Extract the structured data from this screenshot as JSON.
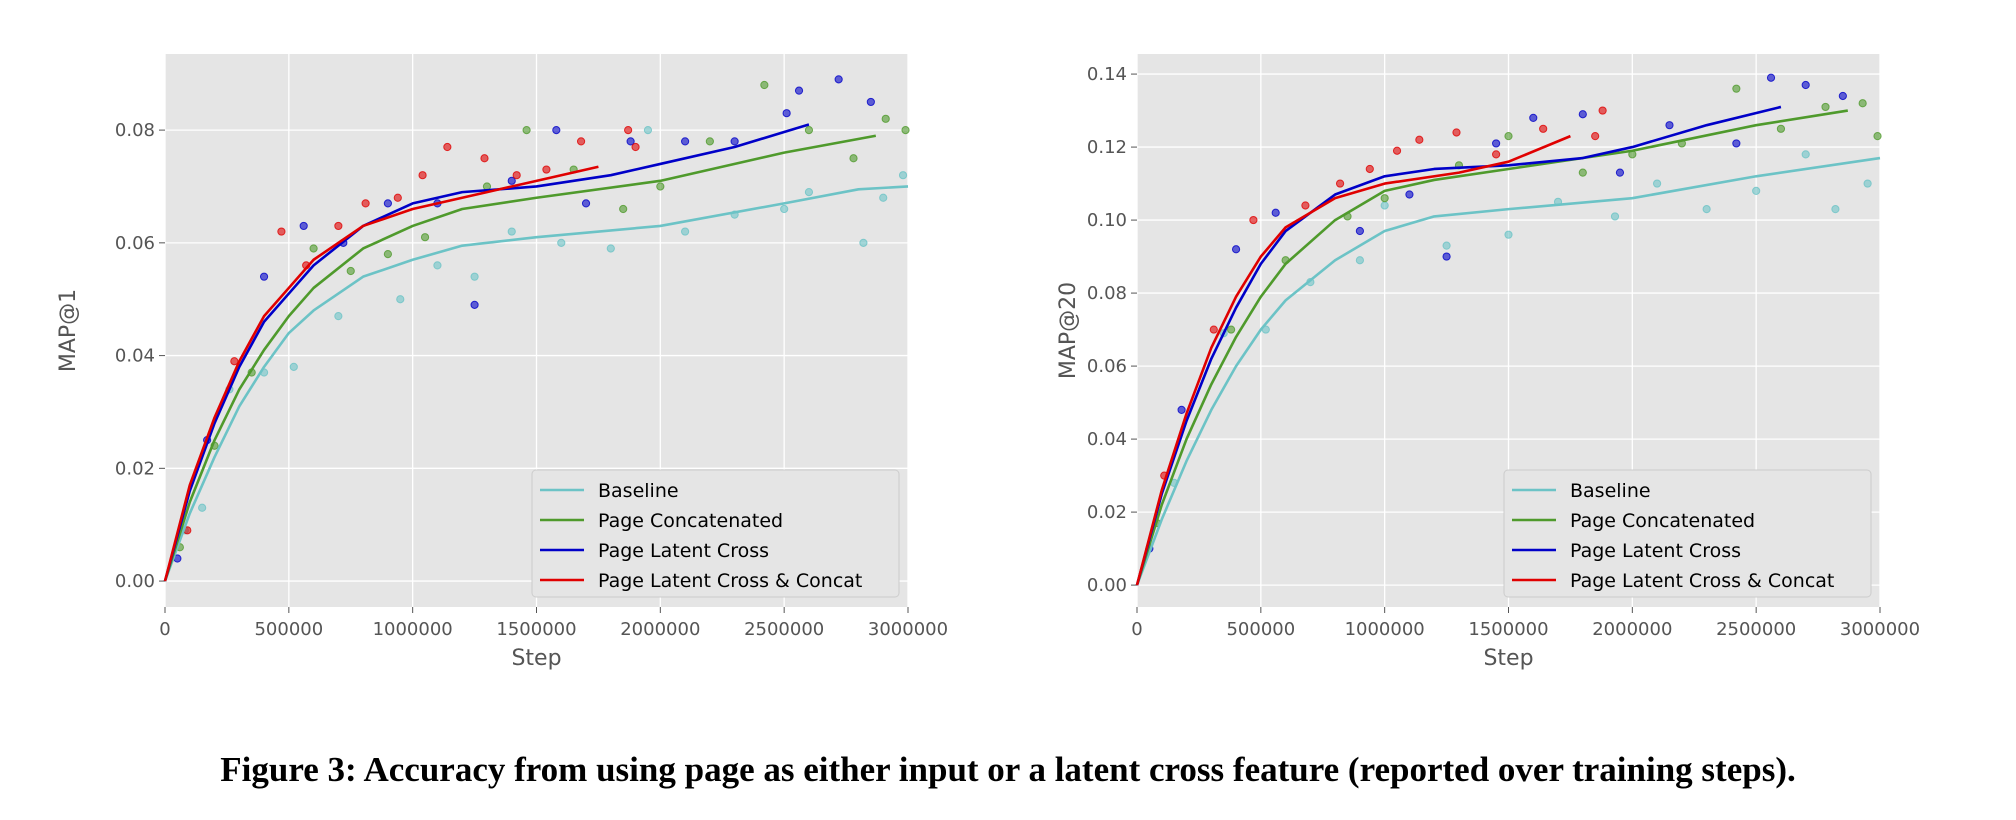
{
  "caption": "Figure 3: Accuracy from using page as either input or a latent cross feature (reported over training steps).",
  "colors": {
    "Baseline": "#6cc3c6",
    "Page Concatenated": "#4f9a2c",
    "Page Latent Cross": "#0000c8",
    "Page Latent Cross & Concat": "#e00000",
    "background": "#e5e5e5",
    "grid": "#ffffff"
  },
  "chart_data": [
    {
      "type": "scatter",
      "xlabel": "Step",
      "ylabel": "MAP@1",
      "xlim": [
        0,
        3000000
      ],
      "ylim": [
        -0.0046,
        0.0935
      ],
      "xticks": [
        "0",
        "500000",
        "1000000",
        "1500000",
        "2000000",
        "2500000",
        "3000000"
      ],
      "yticks": [
        "0.00",
        "0.02",
        "0.04",
        "0.06",
        "0.08"
      ],
      "grid": true,
      "legend": "bottom-right",
      "series": [
        {
          "name": "Baseline",
          "line": [
            [
              0,
              0
            ],
            [
              100000,
              0.012
            ],
            [
              200000,
              0.022
            ],
            [
              300000,
              0.031
            ],
            [
              400000,
              0.038
            ],
            [
              500000,
              0.044
            ],
            [
              600000,
              0.048
            ],
            [
              800000,
              0.054
            ],
            [
              1000000,
              0.057
            ],
            [
              1200000,
              0.0595
            ],
            [
              1500000,
              0.061
            ],
            [
              2000000,
              0.063
            ],
            [
              2500000,
              0.067
            ],
            [
              2800000,
              0.0695
            ],
            [
              3000000,
              0.07
            ]
          ],
          "points": [
            [
              80000,
              0.009
            ],
            [
              150000,
              0.013
            ],
            [
              260000,
              0.034
            ],
            [
              400000,
              0.037
            ],
            [
              520000,
              0.038
            ],
            [
              700000,
              0.047
            ],
            [
              950000,
              0.05
            ],
            [
              1100000,
              0.056
            ],
            [
              1250000,
              0.054
            ],
            [
              1400000,
              0.062
            ],
            [
              1600000,
              0.06
            ],
            [
              1800000,
              0.059
            ],
            [
              1950000,
              0.08
            ],
            [
              2100000,
              0.062
            ],
            [
              2300000,
              0.065
            ],
            [
              2500000,
              0.066
            ],
            [
              2600000,
              0.069
            ],
            [
              2820000,
              0.06
            ],
            [
              2900000,
              0.068
            ],
            [
              2980000,
              0.072
            ]
          ]
        },
        {
          "name": "Page Concatenated",
          "line": [
            [
              0,
              0
            ],
            [
              100000,
              0.014
            ],
            [
              200000,
              0.025
            ],
            [
              300000,
              0.034
            ],
            [
              400000,
              0.041
            ],
            [
              500000,
              0.047
            ],
            [
              600000,
              0.052
            ],
            [
              800000,
              0.059
            ],
            [
              1000000,
              0.063
            ],
            [
              1200000,
              0.066
            ],
            [
              1500000,
              0.068
            ],
            [
              2000000,
              0.071
            ],
            [
              2500000,
              0.076
            ],
            [
              2870000,
              0.079
            ]
          ],
          "points": [
            [
              60000,
              0.006
            ],
            [
              200000,
              0.024
            ],
            [
              350000,
              0.037
            ],
            [
              600000,
              0.059
            ],
            [
              750000,
              0.055
            ],
            [
              900000,
              0.058
            ],
            [
              1050000,
              0.061
            ],
            [
              1300000,
              0.07
            ],
            [
              1460000,
              0.08
            ],
            [
              1650000,
              0.073
            ],
            [
              1850000,
              0.066
            ],
            [
              2000000,
              0.07
            ],
            [
              2200000,
              0.078
            ],
            [
              2420000,
              0.088
            ],
            [
              2600000,
              0.08
            ],
            [
              2780000,
              0.075
            ],
            [
              2910000,
              0.082
            ],
            [
              2990000,
              0.08
            ]
          ]
        },
        {
          "name": "Page Latent Cross",
          "line": [
            [
              0,
              0
            ],
            [
              100000,
              0.016
            ],
            [
              200000,
              0.028
            ],
            [
              300000,
              0.038
            ],
            [
              400000,
              0.046
            ],
            [
              500000,
              0.051
            ],
            [
              600000,
              0.056
            ],
            [
              800000,
              0.063
            ],
            [
              1000000,
              0.067
            ],
            [
              1200000,
              0.069
            ],
            [
              1500000,
              0.07
            ],
            [
              1800000,
              0.072
            ],
            [
              2000000,
              0.074
            ],
            [
              2300000,
              0.077
            ],
            [
              2600000,
              0.081
            ]
          ],
          "points": [
            [
              50000,
              0.004
            ],
            [
              170000,
              0.025
            ],
            [
              400000,
              0.054
            ],
            [
              560000,
              0.063
            ],
            [
              720000,
              0.06
            ],
            [
              900000,
              0.067
            ],
            [
              1100000,
              0.067
            ],
            [
              1250000,
              0.049
            ],
            [
              1400000,
              0.071
            ],
            [
              1580000,
              0.08
            ],
            [
              1700000,
              0.067
            ],
            [
              1880000,
              0.078
            ],
            [
              2100000,
              0.078
            ],
            [
              2300000,
              0.078
            ],
            [
              2510000,
              0.083
            ],
            [
              2560000,
              0.087
            ],
            [
              2720000,
              0.089
            ],
            [
              2850000,
              0.085
            ]
          ]
        },
        {
          "name": "Page Latent Cross & Concat",
          "line": [
            [
              0,
              0
            ],
            [
              100000,
              0.017
            ],
            [
              200000,
              0.029
            ],
            [
              300000,
              0.039
            ],
            [
              400000,
              0.047
            ],
            [
              500000,
              0.052
            ],
            [
              600000,
              0.057
            ],
            [
              800000,
              0.063
            ],
            [
              1000000,
              0.066
            ],
            [
              1300000,
              0.069
            ],
            [
              1500000,
              0.071
            ],
            [
              1750000,
              0.0735
            ]
          ],
          "points": [
            [
              90000,
              0.009
            ],
            [
              280000,
              0.039
            ],
            [
              470000,
              0.062
            ],
            [
              570000,
              0.056
            ],
            [
              700000,
              0.063
            ],
            [
              810000,
              0.067
            ],
            [
              940000,
              0.068
            ],
            [
              1040000,
              0.072
            ],
            [
              1140000,
              0.077
            ],
            [
              1290000,
              0.075
            ],
            [
              1420000,
              0.072
            ],
            [
              1540000,
              0.073
            ],
            [
              1680000,
              0.078
            ],
            [
              1870000,
              0.08
            ],
            [
              1900000,
              0.077
            ]
          ]
        }
      ]
    },
    {
      "type": "scatter",
      "xlabel": "Step",
      "ylabel": "MAP@20",
      "xlim": [
        0,
        3000000
      ],
      "ylim": [
        -0.006,
        0.1455
      ],
      "xticks": [
        "0",
        "500000",
        "1000000",
        "1500000",
        "2000000",
        "2500000",
        "3000000"
      ],
      "yticks": [
        "0.00",
        "0.02",
        "0.04",
        "0.06",
        "0.08",
        "0.10",
        "0.12",
        "0.14"
      ],
      "grid": true,
      "legend": "bottom-right",
      "series": [
        {
          "name": "Baseline",
          "line": [
            [
              0,
              0
            ],
            [
              100000,
              0.018
            ],
            [
              200000,
              0.034
            ],
            [
              300000,
              0.048
            ],
            [
              400000,
              0.06
            ],
            [
              500000,
              0.07
            ],
            [
              600000,
              0.078
            ],
            [
              800000,
              0.089
            ],
            [
              1000000,
              0.097
            ],
            [
              1200000,
              0.101
            ],
            [
              1500000,
              0.103
            ],
            [
              2000000,
              0.106
            ],
            [
              2500000,
              0.112
            ],
            [
              3000000,
              0.117
            ]
          ],
          "points": [
            [
              150000,
              0.028
            ],
            [
              350000,
              0.069
            ],
            [
              520000,
              0.07
            ],
            [
              700000,
              0.083
            ],
            [
              900000,
              0.089
            ],
            [
              1000000,
              0.104
            ],
            [
              1250000,
              0.093
            ],
            [
              1500000,
              0.096
            ],
            [
              1700000,
              0.105
            ],
            [
              1930000,
              0.101
            ],
            [
              2100000,
              0.11
            ],
            [
              2300000,
              0.103
            ],
            [
              2500000,
              0.108
            ],
            [
              2700000,
              0.118
            ],
            [
              2820000,
              0.103
            ],
            [
              2950000,
              0.11
            ]
          ]
        },
        {
          "name": "Page Concatenated",
          "line": [
            [
              0,
              0
            ],
            [
              100000,
              0.022
            ],
            [
              200000,
              0.04
            ],
            [
              300000,
              0.055
            ],
            [
              400000,
              0.068
            ],
            [
              500000,
              0.079
            ],
            [
              600000,
              0.088
            ],
            [
              800000,
              0.1
            ],
            [
              1000000,
              0.108
            ],
            [
              1200000,
              0.111
            ],
            [
              1500000,
              0.114
            ],
            [
              2000000,
              0.119
            ],
            [
              2500000,
              0.126
            ],
            [
              2870000,
              0.13
            ]
          ],
          "points": [
            [
              80000,
              0.017
            ],
            [
              380000,
              0.07
            ],
            [
              600000,
              0.089
            ],
            [
              850000,
              0.101
            ],
            [
              1000000,
              0.106
            ],
            [
              1300000,
              0.115
            ],
            [
              1500000,
              0.123
            ],
            [
              1800000,
              0.113
            ],
            [
              2000000,
              0.118
            ],
            [
              2200000,
              0.121
            ],
            [
              2420000,
              0.136
            ],
            [
              2600000,
              0.125
            ],
            [
              2780000,
              0.131
            ],
            [
              2930000,
              0.132
            ],
            [
              2990000,
              0.123
            ]
          ]
        },
        {
          "name": "Page Latent Cross",
          "line": [
            [
              0,
              0
            ],
            [
              100000,
              0.025
            ],
            [
              200000,
              0.045
            ],
            [
              300000,
              0.062
            ],
            [
              400000,
              0.076
            ],
            [
              500000,
              0.088
            ],
            [
              600000,
              0.097
            ],
            [
              800000,
              0.107
            ],
            [
              1000000,
              0.112
            ],
            [
              1200000,
              0.114
            ],
            [
              1500000,
              0.115
            ],
            [
              1800000,
              0.117
            ],
            [
              2000000,
              0.12
            ],
            [
              2300000,
              0.126
            ],
            [
              2600000,
              0.131
            ]
          ],
          "points": [
            [
              50000,
              0.01
            ],
            [
              180000,
              0.048
            ],
            [
              400000,
              0.092
            ],
            [
              560000,
              0.102
            ],
            [
              900000,
              0.097
            ],
            [
              1100000,
              0.107
            ],
            [
              1250000,
              0.09
            ],
            [
              1450000,
              0.121
            ],
            [
              1600000,
              0.128
            ],
            [
              1800000,
              0.129
            ],
            [
              1950000,
              0.113
            ],
            [
              2150000,
              0.126
            ],
            [
              2420000,
              0.121
            ],
            [
              2560000,
              0.139
            ],
            [
              2700000,
              0.137
            ],
            [
              2850000,
              0.134
            ]
          ]
        },
        {
          "name": "Page Latent Cross & Concat",
          "line": [
            [
              0,
              0
            ],
            [
              100000,
              0.026
            ],
            [
              200000,
              0.047
            ],
            [
              300000,
              0.065
            ],
            [
              400000,
              0.079
            ],
            [
              500000,
              0.09
            ],
            [
              600000,
              0.098
            ],
            [
              800000,
              0.106
            ],
            [
              1000000,
              0.11
            ],
            [
              1300000,
              0.113
            ],
            [
              1500000,
              0.116
            ],
            [
              1750000,
              0.123
            ]
          ],
          "points": [
            [
              110000,
              0.03
            ],
            [
              310000,
              0.07
            ],
            [
              470000,
              0.1
            ],
            [
              680000,
              0.104
            ],
            [
              820000,
              0.11
            ],
            [
              940000,
              0.114
            ],
            [
              1050000,
              0.119
            ],
            [
              1140000,
              0.122
            ],
            [
              1290000,
              0.124
            ],
            [
              1450000,
              0.118
            ],
            [
              1640000,
              0.125
            ],
            [
              1880000,
              0.13
            ],
            [
              1850000,
              0.123
            ]
          ]
        }
      ]
    }
  ]
}
